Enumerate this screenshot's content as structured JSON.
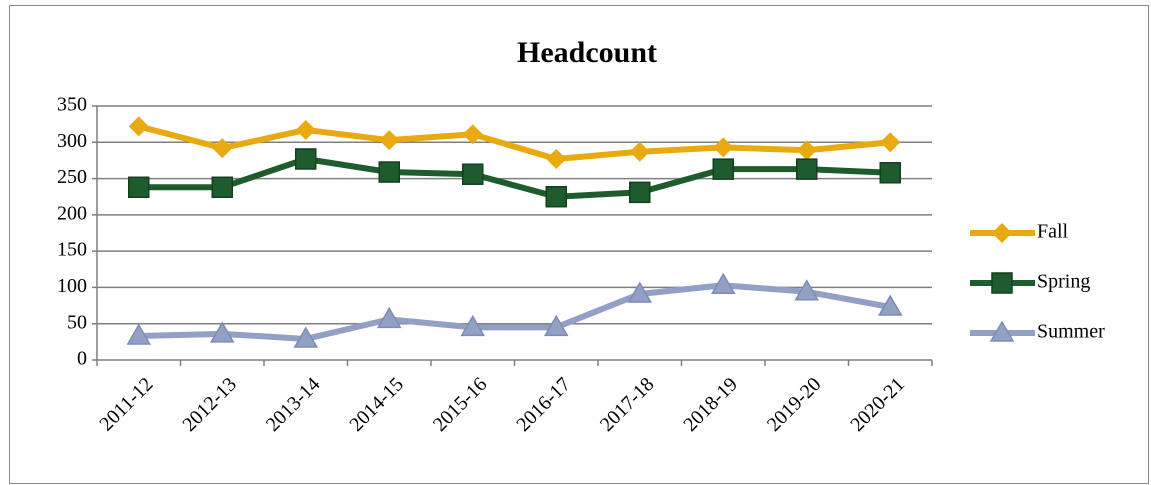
{
  "chart_data": {
    "type": "line",
    "title": "Headcount",
    "categories": [
      "2011-12",
      "2012-13",
      "2013-14",
      "2014-15",
      "2015-16",
      "2016-17",
      "2017-18",
      "2018-19",
      "2019-20",
      "2020-21"
    ],
    "series": [
      {
        "name": "Fall",
        "color": "#e8a911",
        "marker": "diamond",
        "values": [
          322,
          292,
          317,
          303,
          311,
          277,
          287,
          293,
          289,
          300
        ]
      },
      {
        "name": "Spring",
        "color": "#1e5c2e",
        "marker": "square",
        "values": [
          238,
          238,
          277,
          259,
          256,
          225,
          231,
          263,
          263,
          258
        ]
      },
      {
        "name": "Summer",
        "color": "#93a0c6",
        "marker": "triangle",
        "values": [
          33,
          36,
          29,
          56,
          45,
          45,
          91,
          103,
          94,
          73
        ]
      }
    ],
    "ylim": [
      0,
      350
    ],
    "yticks": [
      0,
      50,
      100,
      150,
      200,
      250,
      300,
      350
    ],
    "grid": true,
    "legend": "right"
  }
}
